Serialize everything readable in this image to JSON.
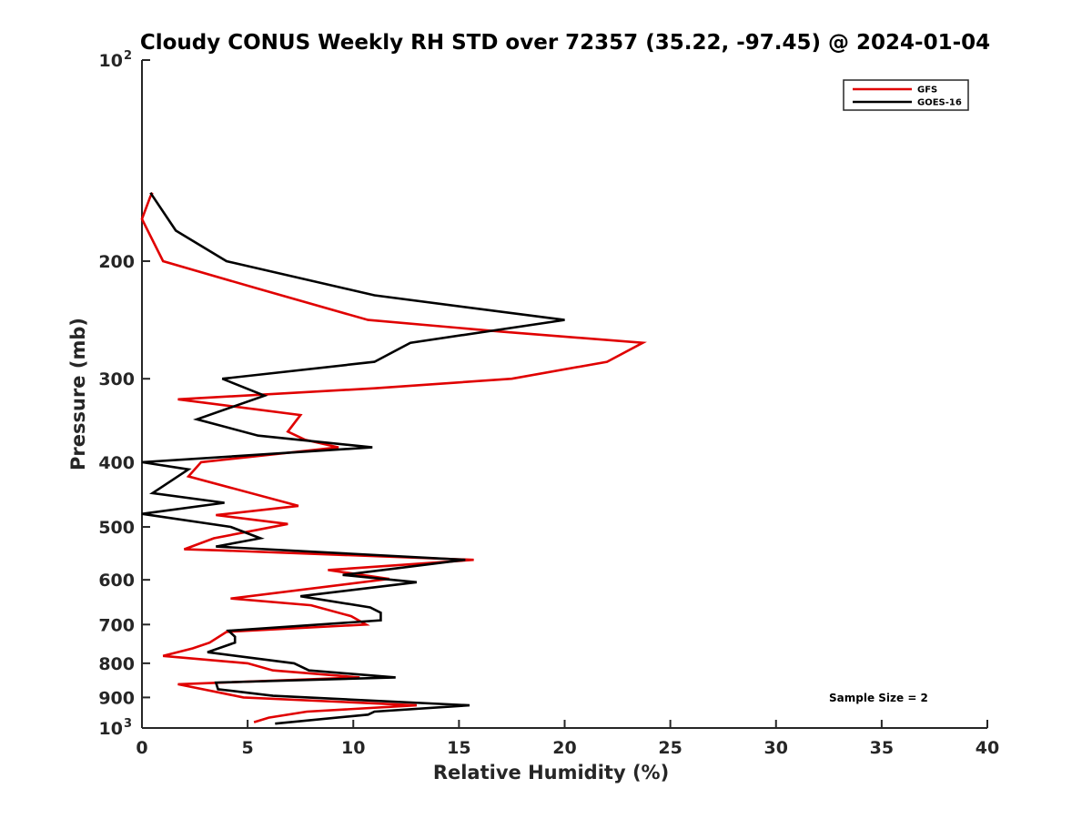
{
  "chart_data": {
    "type": "line",
    "title": "Cloudy CONUS Weekly RH STD over 72357 (35.22, -97.45) @ 2024-01-04",
    "xlabel": "Relative Humidity (%)",
    "ylabel": "Pressure (mb)",
    "xlim": [
      0,
      40
    ],
    "ylim": [
      1000,
      100
    ],
    "y_scale": "log",
    "y_reversed": true,
    "x_ticks": [
      "0",
      "5",
      "10",
      "15",
      "20",
      "25",
      "30",
      "35",
      "40"
    ],
    "y_ticks": [
      {
        "value": 100,
        "base": "10",
        "exp": "2"
      },
      {
        "value": 200,
        "label": "200"
      },
      {
        "value": 300,
        "label": "300"
      },
      {
        "value": 400,
        "label": "400"
      },
      {
        "value": 500,
        "label": "500"
      },
      {
        "value": 600,
        "label": "600"
      },
      {
        "value": 700,
        "label": "700"
      },
      {
        "value": 800,
        "label": "800"
      },
      {
        "value": 900,
        "label": "900"
      },
      {
        "value": 1000,
        "base": "10",
        "exp": "3"
      }
    ],
    "legend_position": "top-right",
    "grid": false,
    "annotation": "Sample Size = 2",
    "series": [
      {
        "name": "GFS",
        "color": "#e00000",
        "points": [
          [
            0.5,
            158
          ],
          [
            0.4,
            160
          ],
          [
            0,
            173
          ],
          [
            1,
            200
          ],
          [
            5.5,
            220
          ],
          [
            10.7,
            245
          ],
          [
            17,
            255
          ],
          [
            23.7,
            265
          ],
          [
            22,
            283
          ],
          [
            17.5,
            300
          ],
          [
            11,
            310
          ],
          [
            1.7,
            322
          ],
          [
            7.5,
            340
          ],
          [
            6.9,
            360
          ],
          [
            7.7,
            370
          ],
          [
            9.3,
            380
          ],
          [
            2.8,
            400
          ],
          [
            2.2,
            420
          ],
          [
            7.4,
            465
          ],
          [
            3.5,
            480
          ],
          [
            6.9,
            495
          ],
          [
            3.4,
            520
          ],
          [
            2.0,
            540
          ],
          [
            3.7,
            542
          ],
          [
            15.7,
            560
          ],
          [
            8.8,
            580
          ],
          [
            11.7,
            598
          ],
          [
            4.2,
            640
          ],
          [
            8.0,
            655
          ],
          [
            9.9,
            680
          ],
          [
            10.6,
            700
          ],
          [
            4.0,
            718
          ],
          [
            3.2,
            745
          ],
          [
            2.4,
            760
          ],
          [
            1.0,
            780
          ],
          [
            5.0,
            800
          ],
          [
            6.2,
            820
          ],
          [
            10.3,
            840
          ],
          [
            1.7,
            860
          ],
          [
            4.8,
            900
          ],
          [
            13.0,
            925
          ],
          [
            7.8,
            945
          ],
          [
            6.0,
            965
          ],
          [
            5.3,
            980
          ]
        ]
      },
      {
        "name": "GOES-16",
        "color": "#000000",
        "points": [
          [
            0.4,
            158
          ],
          [
            1.6,
            180
          ],
          [
            4.0,
            200
          ],
          [
            11.0,
            225
          ],
          [
            20.0,
            245
          ],
          [
            12.7,
            265
          ],
          [
            11.0,
            283
          ],
          [
            3.8,
            300
          ],
          [
            5.8,
            318
          ],
          [
            2.6,
            345
          ],
          [
            5.5,
            365
          ],
          [
            10.9,
            380
          ],
          [
            0,
            400
          ],
          [
            2.2,
            410
          ],
          [
            0.5,
            445
          ],
          [
            3.9,
            460
          ],
          [
            0,
            478
          ],
          [
            4.2,
            500
          ],
          [
            5.6,
            520
          ],
          [
            3.5,
            535
          ],
          [
            15.3,
            560
          ],
          [
            9.5,
            590
          ],
          [
            13.0,
            605
          ],
          [
            7.5,
            635
          ],
          [
            10.8,
            660
          ],
          [
            11.3,
            672
          ],
          [
            11.3,
            690
          ],
          [
            4.1,
            715
          ],
          [
            4.4,
            730
          ],
          [
            4.4,
            745
          ],
          [
            3.1,
            770
          ],
          [
            7.2,
            800
          ],
          [
            7.9,
            820
          ],
          [
            12.0,
            840
          ],
          [
            3.5,
            855
          ],
          [
            3.6,
            875
          ],
          [
            6.2,
            895
          ],
          [
            15.5,
            925
          ],
          [
            11.0,
            945
          ],
          [
            10.7,
            955
          ],
          [
            6.3,
            985
          ]
        ]
      }
    ]
  }
}
